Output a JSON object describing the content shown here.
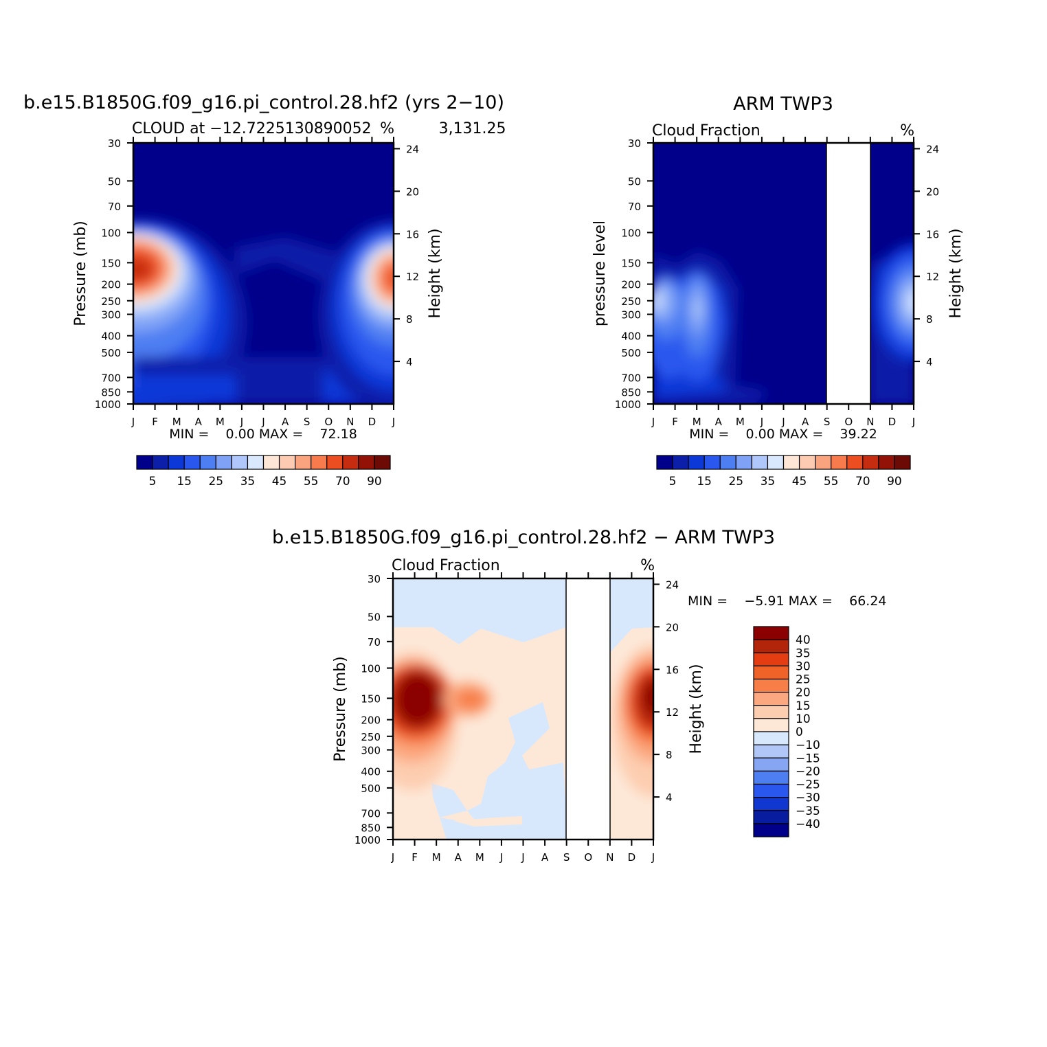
{
  "chart_data": [
    {
      "type": "heatmap",
      "title": "b.e15.B1850G.f09_g16.pi_control.28.hf2 (yrs 2−10)",
      "subtitle_left": "CLOUD at −12.7225130890052              3,131.25",
      "subtitle_right": "%",
      "ylabel_left": "Pressure (mb)",
      "ylabel_right": "Height (km)",
      "x_ticks": [
        "J",
        "F",
        "M",
        "A",
        "M",
        "J",
        "J",
        "A",
        "S",
        "O",
        "N",
        "D",
        "J"
      ],
      "y_ticks": [
        "30",
        "50",
        "70",
        "100",
        "150",
        "200",
        "250",
        "300",
        "400",
        "500",
        "700",
        "850",
        "1000"
      ],
      "y_ticks_right": [
        "24",
        "20",
        "16",
        "12",
        "8",
        "4"
      ],
      "ylim": [
        1000,
        30
      ],
      "stats_text": "MIN =    0.00 MAX =    72.18",
      "min": 0.0,
      "max": 72.18,
      "colorbar_labels": [
        "5",
        "15",
        "25",
        "35",
        "45",
        "55",
        "70",
        "90"
      ],
      "colorbar_levels": [
        5,
        10,
        15,
        20,
        25,
        30,
        35,
        40,
        45,
        50,
        55,
        60,
        70,
        80,
        90
      ]
    },
    {
      "type": "heatmap",
      "title": "ARM TWP3",
      "subtitle_left": "Cloud Fraction",
      "subtitle_right": "%",
      "ylabel_left": "pressure level",
      "ylabel_right": "Height (km)",
      "x_ticks": [
        "J",
        "F",
        "M",
        "A",
        "M",
        "J",
        "J",
        "A",
        "S",
        "O",
        "N",
        "D",
        "J"
      ],
      "y_ticks": [
        "30",
        "50",
        "70",
        "100",
        "150",
        "200",
        "250",
        "300",
        "400",
        "500",
        "700",
        "850",
        "1000"
      ],
      "y_ticks_right": [
        "24",
        "20",
        "16",
        "12",
        "8",
        "4"
      ],
      "ylim": [
        1000,
        30
      ],
      "missing_months": [
        "S",
        "O",
        "N"
      ],
      "stats_text": "MIN =    0.00 MAX =    39.22",
      "min": 0.0,
      "max": 39.22,
      "colorbar_labels": [
        "5",
        "15",
        "25",
        "35",
        "45",
        "55",
        "70",
        "90"
      ],
      "colorbar_levels": [
        5,
        10,
        15,
        20,
        25,
        30,
        35,
        40,
        45,
        50,
        55,
        60,
        70,
        80,
        90
      ]
    },
    {
      "type": "heatmap",
      "title": "b.e15.B1850G.f09_g16.pi_control.28.hf2 − ARM TWP3",
      "subtitle_left": "Cloud Fraction",
      "subtitle_right": "%",
      "ylabel_left": "Pressure (mb)",
      "ylabel_right": "Height (km)",
      "x_ticks": [
        "J",
        "F",
        "M",
        "A",
        "M",
        "J",
        "J",
        "A",
        "S",
        "O",
        "N",
        "D",
        "J"
      ],
      "y_ticks": [
        "30",
        "50",
        "70",
        "100",
        "150",
        "200",
        "250",
        "300",
        "400",
        "500",
        "700",
        "850",
        "1000"
      ],
      "y_ticks_right": [
        "24",
        "20",
        "16",
        "12",
        "8",
        "4"
      ],
      "ylim": [
        1000,
        30
      ],
      "missing_months": [
        "S",
        "O",
        "N"
      ],
      "stats_text": "MIN =    −5.91 MAX =    66.24",
      "min": -5.91,
      "max": 66.24,
      "colorbar_labels": [
        "40",
        "35",
        "30",
        "25",
        "20",
        "15",
        "10",
        "0",
        "−10",
        "−15",
        "−20",
        "−25",
        "−30",
        "−35",
        "−40"
      ],
      "colorbar_levels": [
        40,
        35,
        30,
        25,
        20,
        15,
        10,
        0,
        -10,
        -15,
        -20,
        -25,
        -30,
        -35,
        -40
      ]
    }
  ],
  "colors": {
    "seq": [
      "#00008a",
      "#0b1fa8",
      "#0c38d8",
      "#2a58ee",
      "#4d7ef2",
      "#7fa2f6",
      "#afc7fa",
      "#d9e8fc",
      "#fde6d6",
      "#fdcbb1",
      "#f9a47e",
      "#f77b4d",
      "#ec4d21",
      "#c62c0f",
      "#931208",
      "#6c0a05"
    ],
    "diff": [
      "#8b0000",
      "#b3250a",
      "#e43d12",
      "#f06328",
      "#f77e46",
      "#fba880",
      "#fdcdb0",
      "#fde8d8",
      "#d8e8fc",
      "#b0c7f8",
      "#86a6f4",
      "#4d7ef2",
      "#2a58ee",
      "#1038d0",
      "#081ca0",
      "#00008a"
    ]
  }
}
